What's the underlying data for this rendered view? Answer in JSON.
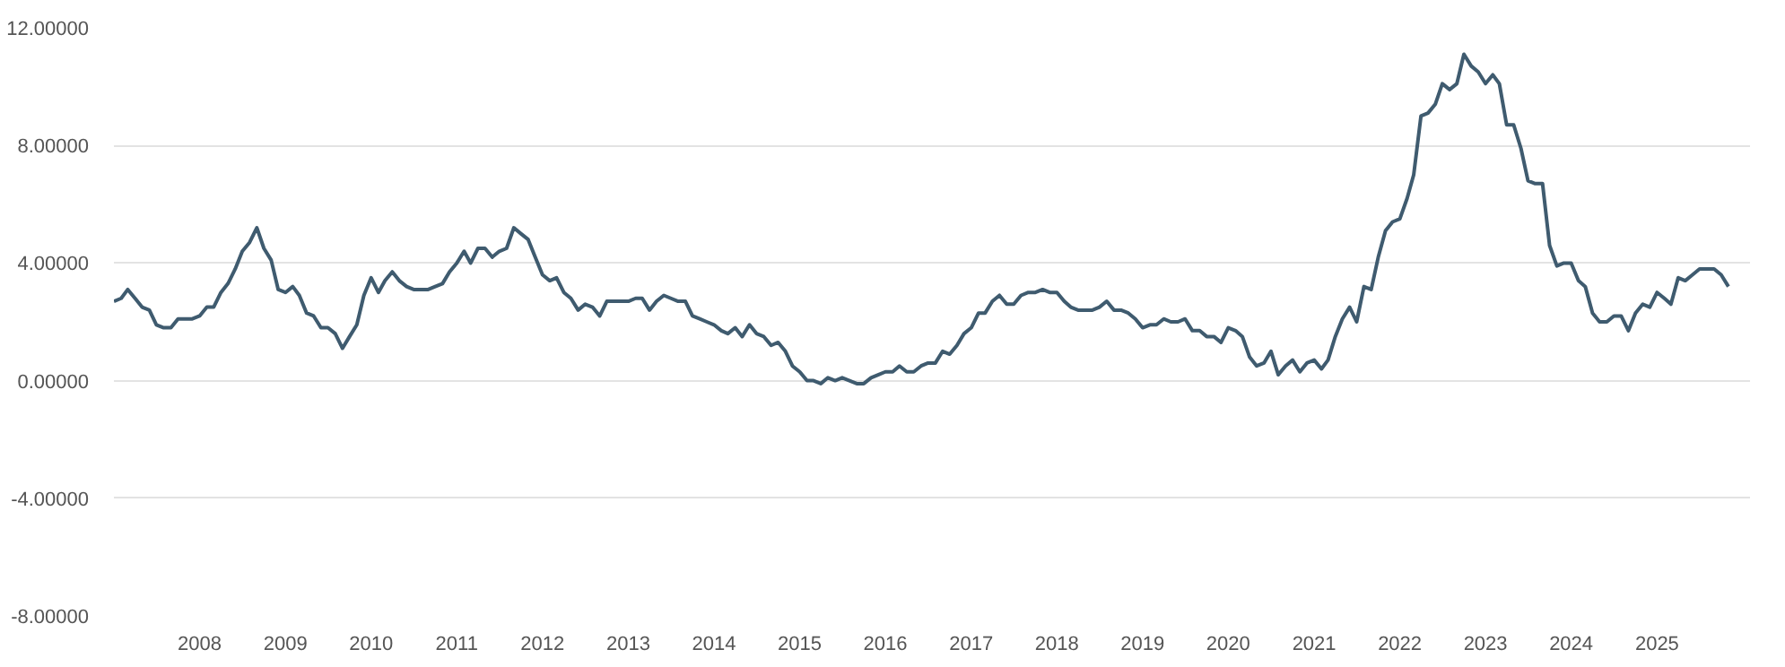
{
  "chart_data": {
    "type": "line",
    "x": [
      "2007-01",
      "2007-02",
      "2007-03",
      "2007-04",
      "2007-05",
      "2007-06",
      "2007-07",
      "2007-08",
      "2007-09",
      "2007-10",
      "2007-11",
      "2007-12",
      "2008-01",
      "2008-02",
      "2008-03",
      "2008-04",
      "2008-05",
      "2008-06",
      "2008-07",
      "2008-08",
      "2008-09",
      "2008-10",
      "2008-11",
      "2008-12",
      "2009-01",
      "2009-02",
      "2009-03",
      "2009-04",
      "2009-05",
      "2009-06",
      "2009-07",
      "2009-08",
      "2009-09",
      "2009-10",
      "2009-11",
      "2009-12",
      "2010-01",
      "2010-02",
      "2010-03",
      "2010-04",
      "2010-05",
      "2010-06",
      "2010-07",
      "2010-08",
      "2010-09",
      "2010-10",
      "2010-11",
      "2010-12",
      "2011-01",
      "2011-02",
      "2011-03",
      "2011-04",
      "2011-05",
      "2011-06",
      "2011-07",
      "2011-08",
      "2011-09",
      "2011-10",
      "2011-11",
      "2011-12",
      "2012-01",
      "2012-02",
      "2012-03",
      "2012-04",
      "2012-05",
      "2012-06",
      "2012-07",
      "2012-08",
      "2012-09",
      "2012-10",
      "2012-11",
      "2012-12",
      "2013-01",
      "2013-02",
      "2013-03",
      "2013-04",
      "2013-05",
      "2013-06",
      "2013-07",
      "2013-08",
      "2013-09",
      "2013-10",
      "2013-11",
      "2013-12",
      "2014-01",
      "2014-02",
      "2014-03",
      "2014-04",
      "2014-05",
      "2014-06",
      "2014-07",
      "2014-08",
      "2014-09",
      "2014-10",
      "2014-11",
      "2014-12",
      "2015-01",
      "2015-02",
      "2015-03",
      "2015-04",
      "2015-05",
      "2015-06",
      "2015-07",
      "2015-08",
      "2015-09",
      "2015-10",
      "2015-11",
      "2015-12",
      "2016-01",
      "2016-02",
      "2016-03",
      "2016-04",
      "2016-05",
      "2016-06",
      "2016-07",
      "2016-08",
      "2016-09",
      "2016-10",
      "2016-11",
      "2016-12",
      "2017-01",
      "2017-02",
      "2017-03",
      "2017-04",
      "2017-05",
      "2017-06",
      "2017-07",
      "2017-08",
      "2017-09",
      "2017-10",
      "2017-11",
      "2017-12",
      "2018-01",
      "2018-02",
      "2018-03",
      "2018-04",
      "2018-05",
      "2018-06",
      "2018-07",
      "2018-08",
      "2018-09",
      "2018-10",
      "2018-11",
      "2018-12",
      "2019-01",
      "2019-02",
      "2019-03",
      "2019-04",
      "2019-05",
      "2019-06",
      "2019-07",
      "2019-08",
      "2019-09",
      "2019-10",
      "2019-11",
      "2019-12",
      "2020-01",
      "2020-02",
      "2020-03",
      "2020-04",
      "2020-05",
      "2020-06",
      "2020-07",
      "2020-08",
      "2020-09",
      "2020-10",
      "2020-11",
      "2020-12",
      "2021-01",
      "2021-02",
      "2021-03",
      "2021-04",
      "2021-05",
      "2021-06",
      "2021-07",
      "2021-08",
      "2021-09",
      "2021-10",
      "2021-11",
      "2021-12",
      "2022-01",
      "2022-02",
      "2022-03",
      "2022-04",
      "2022-05",
      "2022-06",
      "2022-07",
      "2022-08",
      "2022-09",
      "2022-10",
      "2022-11",
      "2022-12",
      "2023-01",
      "2023-02",
      "2023-03",
      "2023-04",
      "2023-05",
      "2023-06",
      "2023-07",
      "2023-08",
      "2023-09",
      "2023-10",
      "2023-11",
      "2023-12",
      "2024-01",
      "2024-02",
      "2024-03",
      "2024-04",
      "2024-05",
      "2024-06",
      "2024-07",
      "2024-08",
      "2024-09",
      "2024-10",
      "2024-11",
      "2024-12",
      "2025-01",
      "2025-02",
      "2025-03",
      "2025-04",
      "2025-05",
      "2025-06",
      "2025-07",
      "2025-08",
      "2025-09",
      "2025-10",
      "2025-11"
    ],
    "series": [
      {
        "color": "#3f5b6f",
        "values": [
          2.7,
          2.8,
          3.1,
          2.8,
          2.5,
          2.4,
          1.9,
          1.8,
          1.8,
          2.1,
          2.1,
          2.1,
          2.2,
          2.5,
          2.5,
          3.0,
          3.3,
          3.8,
          4.4,
          4.7,
          5.2,
          4.5,
          4.1,
          3.1,
          3.0,
          3.2,
          2.9,
          2.3,
          2.2,
          1.8,
          1.8,
          1.6,
          1.1,
          1.5,
          1.9,
          2.9,
          3.5,
          3.0,
          3.4,
          3.7,
          3.4,
          3.2,
          3.1,
          3.1,
          3.1,
          3.2,
          3.3,
          3.7,
          4.0,
          4.4,
          4.0,
          4.5,
          4.5,
          4.2,
          4.4,
          4.5,
          5.2,
          5.0,
          4.8,
          4.2,
          3.6,
          3.4,
          3.5,
          3.0,
          2.8,
          2.4,
          2.6,
          2.5,
          2.2,
          2.7,
          2.7,
          2.7,
          2.7,
          2.8,
          2.8,
          2.4,
          2.7,
          2.9,
          2.8,
          2.7,
          2.7,
          2.2,
          2.1,
          2.0,
          1.9,
          1.7,
          1.6,
          1.8,
          1.5,
          1.9,
          1.6,
          1.5,
          1.2,
          1.3,
          1.0,
          0.5,
          0.3,
          0.0,
          0.0,
          -0.1,
          0.1,
          0.0,
          0.1,
          0.0,
          -0.1,
          -0.1,
          0.1,
          0.2,
          0.3,
          0.3,
          0.5,
          0.3,
          0.3,
          0.5,
          0.6,
          0.6,
          1.0,
          0.9,
          1.2,
          1.6,
          1.8,
          2.3,
          2.3,
          2.7,
          2.9,
          2.6,
          2.6,
          2.9,
          3.0,
          3.0,
          3.1,
          3.0,
          3.0,
          2.7,
          2.5,
          2.4,
          2.4,
          2.4,
          2.5,
          2.7,
          2.4,
          2.4,
          2.3,
          2.1,
          1.8,
          1.9,
          1.9,
          2.1,
          2.0,
          2.0,
          2.1,
          1.7,
          1.7,
          1.5,
          1.5,
          1.3,
          1.8,
          1.7,
          1.5,
          0.8,
          0.5,
          0.6,
          1.0,
          0.2,
          0.5,
          0.7,
          0.3,
          0.6,
          0.7,
          0.4,
          0.7,
          1.5,
          2.1,
          2.5,
          2.0,
          3.2,
          3.1,
          4.2,
          5.1,
          5.4,
          5.5,
          6.2,
          7.0,
          9.0,
          9.1,
          9.4,
          10.1,
          9.9,
          10.1,
          11.1,
          10.7,
          10.5,
          10.1,
          10.4,
          10.1,
          8.7,
          8.7,
          7.9,
          6.8,
          6.7,
          6.7,
          4.6,
          3.9,
          4.0,
          4.0,
          3.4,
          3.2,
          2.3,
          2.0,
          2.0,
          2.2,
          2.2,
          1.7,
          2.3,
          2.6,
          2.5,
          3.0,
          2.8,
          2.6,
          3.5,
          3.4,
          3.6,
          3.8,
          3.8,
          3.8,
          3.6,
          3.2
        ]
      }
    ],
    "xlim": [
      "2007-01",
      "2026-02"
    ],
    "xticks": [
      {
        "value": "2008",
        "label": "2008"
      },
      {
        "value": "2009",
        "label": "2009"
      },
      {
        "value": "2010",
        "label": "2010"
      },
      {
        "value": "2011",
        "label": "2011"
      },
      {
        "value": "2012",
        "label": "2012"
      },
      {
        "value": "2013",
        "label": "2013"
      },
      {
        "value": "2014",
        "label": "2014"
      },
      {
        "value": "2015",
        "label": "2015"
      },
      {
        "value": "2016",
        "label": "2016"
      },
      {
        "value": "2017",
        "label": "2017"
      },
      {
        "value": "2018",
        "label": "2018"
      },
      {
        "value": "2019",
        "label": "2019"
      },
      {
        "value": "2020",
        "label": "2020"
      },
      {
        "value": "2021",
        "label": "2021"
      },
      {
        "value": "2022",
        "label": "2022"
      },
      {
        "value": "2023",
        "label": "2023"
      },
      {
        "value": "2024",
        "label": "2024"
      },
      {
        "value": "2025",
        "label": "2025"
      }
    ],
    "ylim": [
      -8,
      12
    ],
    "yticks": [
      {
        "value": -8,
        "label": "-8.00000"
      },
      {
        "value": -4,
        "label": "-4.00000"
      },
      {
        "value": 0,
        "label": "0.00000"
      },
      {
        "value": 4,
        "label": "4.00000"
      },
      {
        "value": 8,
        "label": "8.00000"
      },
      {
        "value": 12,
        "label": "12.00000"
      }
    ],
    "grid": "y",
    "marker": "none",
    "line_style": "solid"
  }
}
